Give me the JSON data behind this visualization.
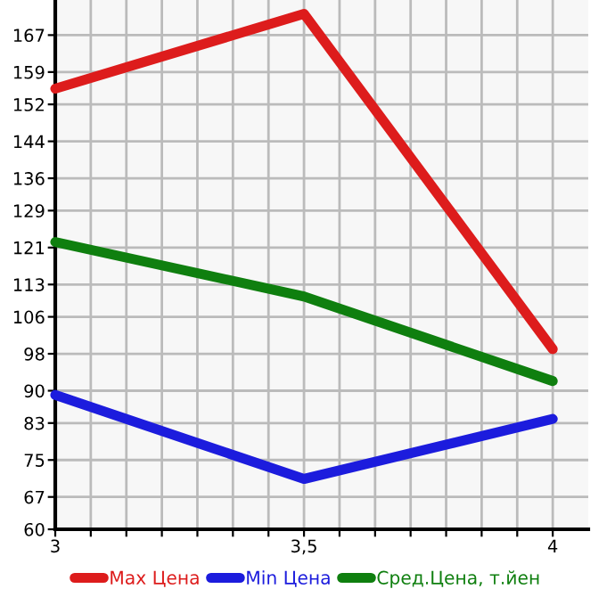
{
  "chart_data": {
    "type": "line",
    "x": [
      3,
      3.5,
      4
    ],
    "series": [
      {
        "name": "Max Цена",
        "color": "#dd1c1c",
        "values": [
          155.4,
          171.6,
          99.0
        ]
      },
      {
        "name": "Min Цена",
        "color": "#1c1cdd",
        "values": [
          89.1,
          70.9,
          83.9
        ]
      },
      {
        "name": "Сред.Цена, т.йен",
        "color": "#0f7f0f",
        "values": [
          122.2,
          110.4,
          92.1
        ]
      }
    ],
    "xlim": [
      3,
      4.0714
    ],
    "xticks": [
      {
        "value": 3,
        "label": "3"
      },
      {
        "value": 3.0714,
        "label": null
      },
      {
        "value": 3.1429,
        "label": null
      },
      {
        "value": 3.2143,
        "label": null
      },
      {
        "value": 3.2857,
        "label": null
      },
      {
        "value": 3.3571,
        "label": null
      },
      {
        "value": 3.4286,
        "label": null
      },
      {
        "value": 3.5,
        "label": "3,5"
      },
      {
        "value": 3.5714,
        "label": null
      },
      {
        "value": 3.6429,
        "label": null
      },
      {
        "value": 3.7143,
        "label": null
      },
      {
        "value": 3.7857,
        "label": null
      },
      {
        "value": 3.8571,
        "label": null
      },
      {
        "value": 3.9286,
        "label": null
      },
      {
        "value": 4,
        "label": "4"
      }
    ],
    "ylim": [
      60,
      174.6
    ],
    "yticks": [
      60,
      67,
      75,
      83,
      90,
      98,
      106,
      113,
      121,
      129,
      136,
      144,
      152,
      159,
      167
    ],
    "grid": true,
    "legend": "bottom",
    "marker": "none",
    "line_style": "solid"
  }
}
